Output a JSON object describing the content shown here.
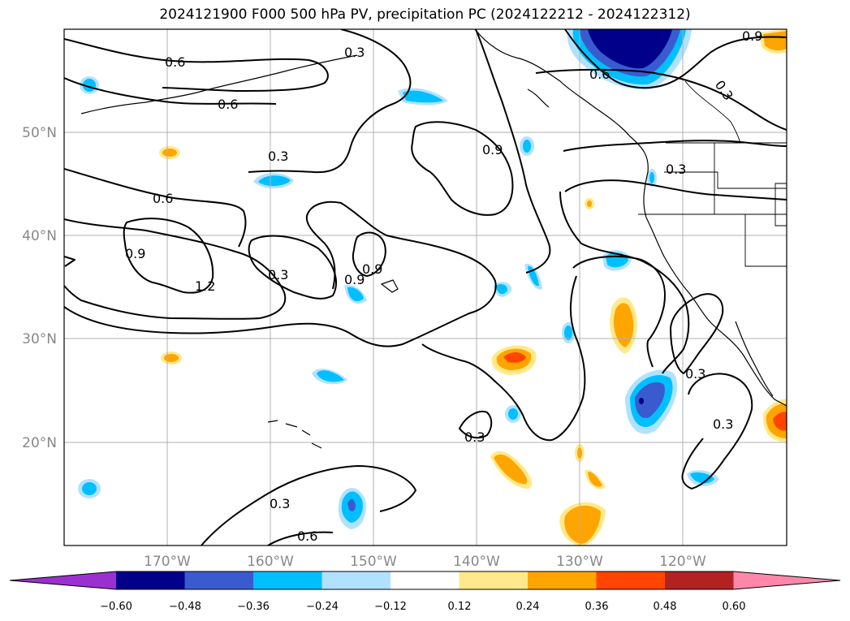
{
  "title": "2024121900 F000 500 hPa PV, precipitation PC (2024122212 - 2024122312)",
  "map": {
    "lon_labels": [
      "170°W",
      "160°W",
      "150°W",
      "140°W",
      "130°W",
      "120°W"
    ],
    "lat_labels": [
      "50°N",
      "40°N",
      "30°N",
      "20°N"
    ],
    "gridlines": true
  },
  "pv_contour_labels": [
    "0.6",
    "0.3",
    "0.9",
    "0.6",
    "0.6",
    "0.3",
    "0.9",
    "0.6",
    "0.9",
    "1.2",
    "0.3",
    "0.9",
    "0.9",
    "0.3",
    "0.3",
    "0.3",
    "0.3",
    "0.3",
    "0.6",
    "0.3"
  ],
  "colorbar": {
    "levels": [
      "−0.60",
      "−0.48",
      "−0.36",
      "−0.24",
      "−0.12",
      "0.12",
      "0.24",
      "0.36",
      "0.48",
      "0.60"
    ],
    "colors": [
      "#9b30d0",
      "#00008b",
      "#3a5bd0",
      "#00bfff",
      "#b0e2ff",
      "#ffffff",
      "#ffe98a",
      "#ffa500",
      "#ff4500",
      "#b22222",
      "#ff88aa"
    ]
  }
}
